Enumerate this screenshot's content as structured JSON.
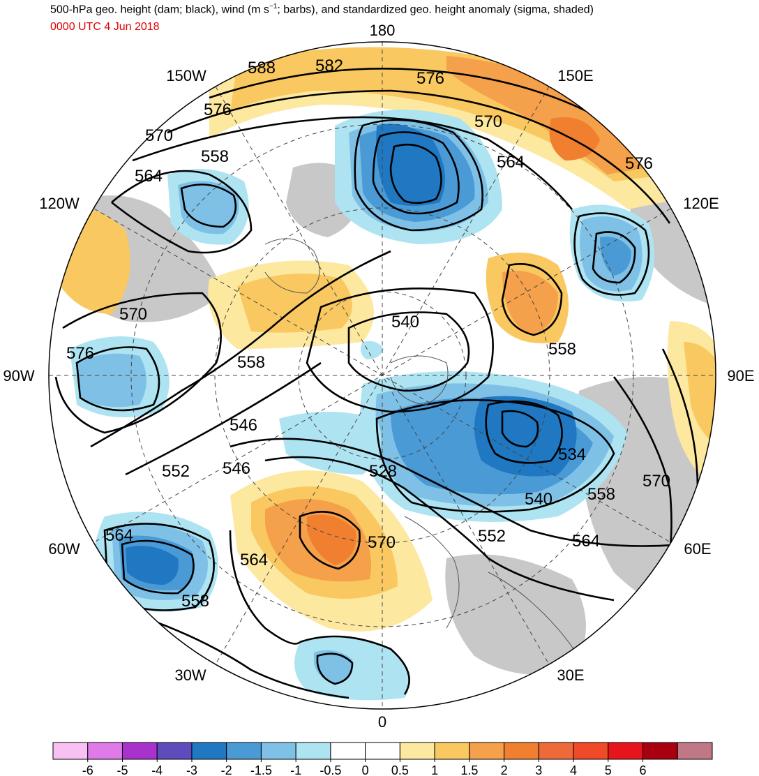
{
  "header": {
    "title_main": "500-hPa geo. height (dam; black), wind (m s",
    "title_sup": "−1",
    "title_rest": "; barbs), and standardized geo. height anomaly (sigma, shaded)",
    "valid_time": "0000 UTC 4 Jun 2018"
  },
  "map": {
    "projection": "north-polar-stereographic",
    "longitude_labels": {
      "top": "180",
      "bottom": "0",
      "left": "90W",
      "right": "90E",
      "upper_left_a": "150W",
      "upper_left_b": "120W",
      "upper_right_a": "150E",
      "upper_right_b": "120E",
      "lower_left_a": "60W",
      "lower_left_b": "30W",
      "lower_right_a": "60E",
      "lower_right_b": "30E"
    },
    "contour_labels": {
      "c588": "588",
      "c582": "582",
      "c576_a": "576",
      "c576_b": "576",
      "c576_c": "576",
      "c576_d": "576",
      "c570_a": "570",
      "c570_b": "570",
      "c570_c": "570",
      "c570_d": "570",
      "c570_e": "570",
      "c564_a": "564",
      "c564_b": "564",
      "c564_c": "564",
      "c564_d": "564",
      "c564_e": "564",
      "c558_a": "558",
      "c558_b": "558",
      "c558_c": "558",
      "c558_d": "558",
      "c558_e": "558",
      "c552_a": "552",
      "c552_b": "552",
      "c546_a": "546",
      "c546_b": "546",
      "c540_a": "540",
      "c540_b": "540",
      "c534": "534",
      "c528": "528"
    },
    "colors": {
      "neg6": "#f7c2f2",
      "neg5": "#df7ae8",
      "neg4": "#a832cc",
      "neg3": "#5e4cbd",
      "neg25": "#1f78c1",
      "neg2": "#4a9ad6",
      "neg15": "#7fc1e6",
      "neg1": "#aee3f2",
      "neutral": "#ffffff",
      "pos05": "#fde8a0",
      "pos1": "#f9c860",
      "pos15": "#f5a04a",
      "pos2": "#f08030",
      "pos25": "#ef6a3a",
      "pos3": "#f04a28",
      "pos4": "#e8141c",
      "pos5": "#a8000e",
      "pos6": "#c07888",
      "land": "#c8c8c8"
    }
  },
  "colorbar": {
    "tick_labels": [
      "-6",
      "-5",
      "-4",
      "-3",
      "-2",
      "-1.5",
      "-1",
      "-0.5",
      "0",
      "0.5",
      "1",
      "1.5",
      "2",
      "3",
      "4",
      "5",
      "6"
    ],
    "colors": [
      "#f7c2f2",
      "#df7ae8",
      "#a832cc",
      "#5e4cbd",
      "#1f78c1",
      "#4a9ad6",
      "#7fc1e6",
      "#aee3f2",
      "#ffffff",
      "#ffffff",
      "#fde8a0",
      "#f9c860",
      "#f5a04a",
      "#f08030",
      "#ef6a3a",
      "#f04a28",
      "#e8141c",
      "#a8000e",
      "#c07888"
    ]
  }
}
